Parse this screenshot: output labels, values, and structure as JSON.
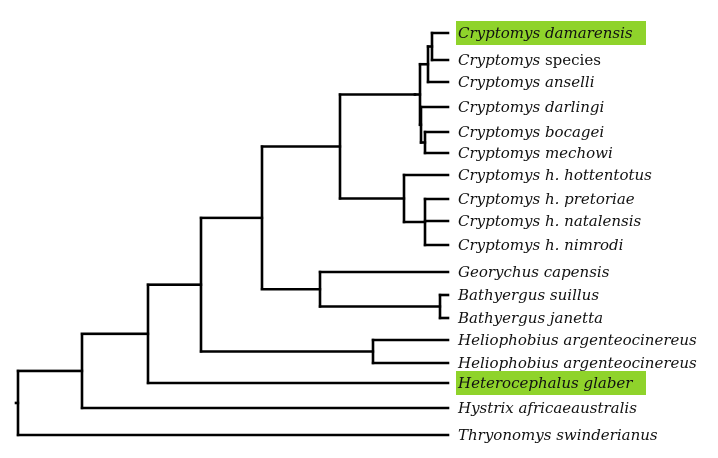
{
  "tree": {
    "highlight_color": "#8fd32b",
    "leaves": [
      {
        "id": "damarensis",
        "genus": "Cryptomys",
        "epithet": "damarensis",
        "plain": "",
        "highlighted": true
      },
      {
        "id": "species",
        "genus": "Cryptomys",
        "epithet": "",
        "plain": "species",
        "highlighted": false
      },
      {
        "id": "anselli",
        "genus": "Cryptomys",
        "epithet": "anselli",
        "plain": "",
        "highlighted": false
      },
      {
        "id": "darlingi",
        "genus": "Cryptomys",
        "epithet": "darlingi",
        "plain": "",
        "highlighted": false
      },
      {
        "id": "bocagei",
        "genus": "Cryptomys",
        "epithet": "bocagei",
        "plain": "",
        "highlighted": false
      },
      {
        "id": "mechowi",
        "genus": "Cryptomys",
        "epithet": "mechowi",
        "plain": "",
        "highlighted": false
      },
      {
        "id": "hottentotus",
        "genus": "Cryptomys",
        "epithet": "h. hottentotus",
        "plain": "",
        "highlighted": false
      },
      {
        "id": "pretoriae",
        "genus": "Cryptomys",
        "epithet": "h. pretoriae",
        "plain": "",
        "highlighted": false
      },
      {
        "id": "natalensis",
        "genus": "Cryptomys",
        "epithet": "h. natalensis",
        "plain": "",
        "highlighted": false
      },
      {
        "id": "nimrodi",
        "genus": "Cryptomys",
        "epithet": "h. nimrodi",
        "plain": "",
        "highlighted": false
      },
      {
        "id": "georychus",
        "genus": "Georychus",
        "epithet": "capensis",
        "plain": "",
        "highlighted": false
      },
      {
        "id": "suillus",
        "genus": "Bathyergus",
        "epithet": "suillus",
        "plain": "",
        "highlighted": false
      },
      {
        "id": "janetta",
        "genus": "Bathyergus",
        "epithet": "janetta",
        "plain": "",
        "highlighted": false
      },
      {
        "id": "helio1",
        "genus": "Heliophobius",
        "epithet": "argenteocinereus",
        "plain": "",
        "highlighted": false
      },
      {
        "id": "helio2",
        "genus": "Heliophobius",
        "epithet": "argenteocinereus",
        "plain": "",
        "highlighted": false
      },
      {
        "id": "glaber",
        "genus": "Heterocephalus",
        "epithet": "glaber",
        "plain": "",
        "highlighted": true
      },
      {
        "id": "hystrix",
        "genus": "Hystrix",
        "epithet": "africaeaustralis",
        "plain": "",
        "highlighted": false
      },
      {
        "id": "thryonomys",
        "genus": "Thryonomys",
        "epithet": "swinderianus",
        "plain": "",
        "highlighted": false
      }
    ]
  }
}
